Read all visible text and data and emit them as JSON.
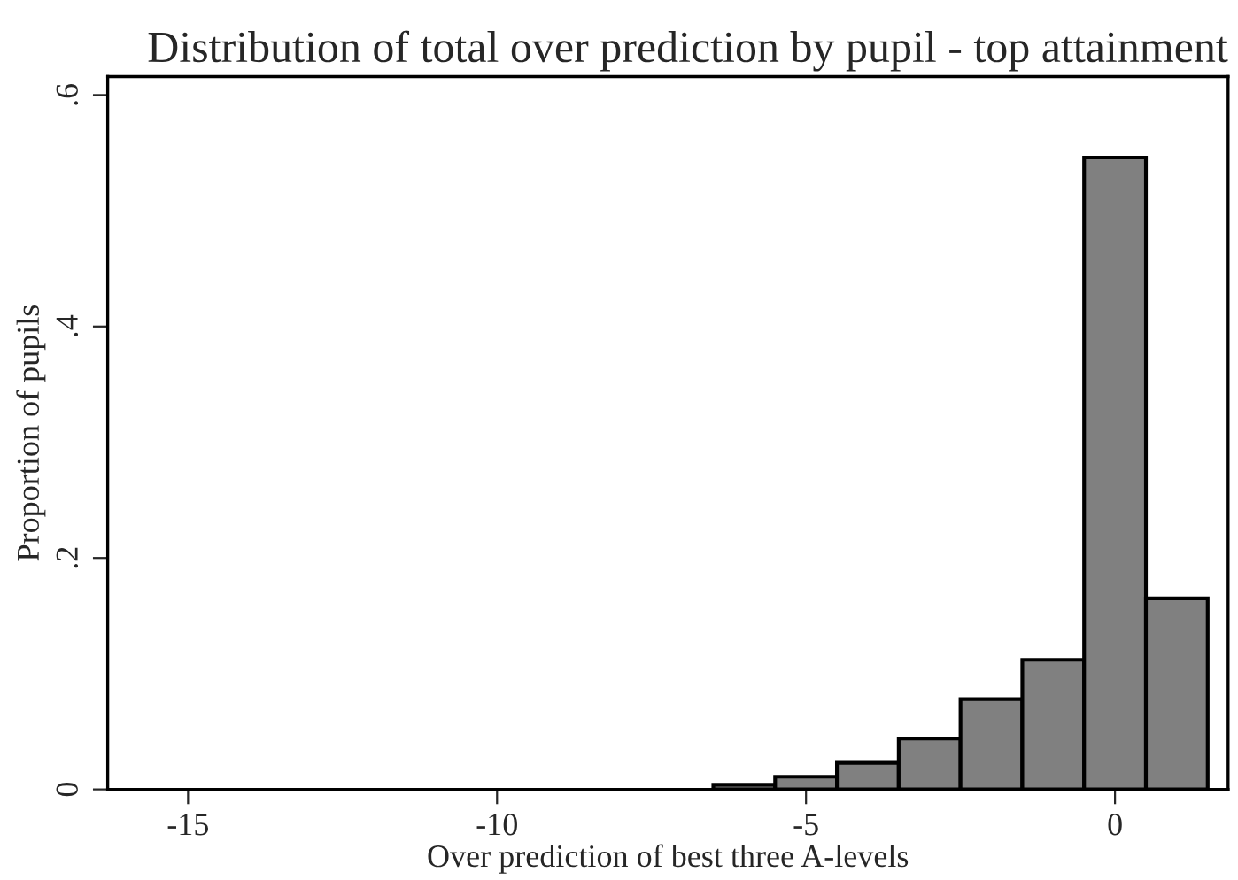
{
  "chart_data": {
    "type": "histogram",
    "title": "Distribution of total over prediction by pupil - top attainment",
    "xlabel": "Over prediction of best three A-levels",
    "ylabel": "Proportion of pupils",
    "bins": [
      -6.5,
      -5.5,
      -4.5,
      -3.5,
      -2.5,
      -1.5,
      -0.5,
      0.5,
      1.5
    ],
    "values": [
      0.004,
      0.011,
      0.023,
      0.044,
      0.078,
      0.112,
      0.546,
      0.165
    ],
    "color": "#808080",
    "xlim": [
      -16.3,
      1.83
    ],
    "ylim": [
      0,
      0.616
    ],
    "xticks": [
      -15,
      -10,
      -5,
      0
    ],
    "yticks": [
      0,
      {
        "value": 0.2,
        "label": ".2"
      },
      {
        "value": 0.4,
        "label": ".4"
      },
      {
        "value": 0.6,
        "label": ".6"
      }
    ],
    "grid": false
  }
}
